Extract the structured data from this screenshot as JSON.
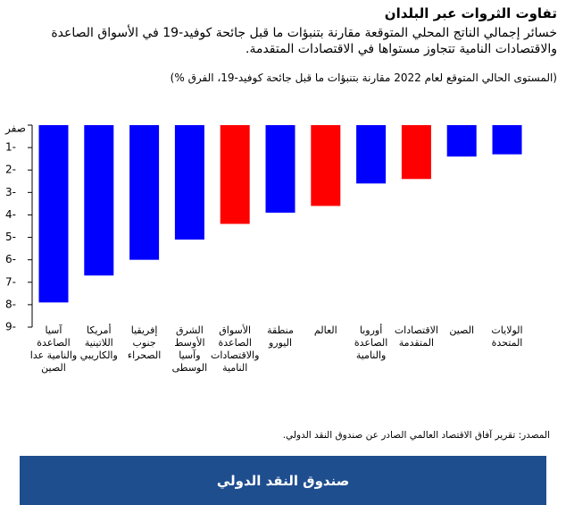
{
  "chart_data": {
    "type": "bar",
    "title": "تفاوت الثروات عبر البلدان",
    "subtitle": "خسائر إجمالي الناتج المحلي المتوقعة مقارنة بتنبؤات ما قبل جائحة كوفيد-19 في الأسواق الصاعدة والاقتصادات النامية تتجاوز مستواها في الاقتصادات المتقدمة.",
    "y_label": "(المستوى الحالي المتوقع لعام 2022 مقارنة بتنبؤات ما قبل جائحة كوفيد-19، الفرق %)",
    "categories": [
      "آسيا الصاعدة والنامية عدا الصين",
      "أمريكا اللاتينية والكاريبي",
      "إفريقيا جنوب الصحراء",
      "الشرق الأوسط وآسيا الوسطى",
      "الأسواق الصاعدة والاقتصادات النامية",
      "منطقة اليورو",
      "العالم",
      "أوروبا الصاعدة والنامية",
      "الاقتصادات المتقدمة",
      "الصين",
      "الولايات المتحدة"
    ],
    "values": [
      -7.9,
      -6.7,
      -6.0,
      -5.1,
      -4.4,
      -3.9,
      -3.6,
      -2.6,
      -2.4,
      -1.4,
      -1.3
    ],
    "colors": [
      "#0000ff",
      "#0000ff",
      "#0000ff",
      "#0000ff",
      "#ff0000",
      "#0000ff",
      "#ff0000",
      "#0000ff",
      "#ff0000",
      "#0000ff",
      "#0000ff"
    ],
    "ylim": [
      -9,
      0
    ],
    "yticks": [
      {
        "value": 0,
        "label": "صفر"
      },
      {
        "value": -1,
        "label": "1-"
      },
      {
        "value": -2,
        "label": "2-"
      },
      {
        "value": -3,
        "label": "3-"
      },
      {
        "value": -4,
        "label": "4-"
      },
      {
        "value": -5,
        "label": "5-"
      },
      {
        "value": -6,
        "label": "6-"
      },
      {
        "value": -7,
        "label": "7-"
      },
      {
        "value": -8,
        "label": "8-"
      },
      {
        "value": -9,
        "label": "9-"
      }
    ],
    "source": "المصدر: تقرير آفاق الاقتصاد العالمي الصادر عن صندوق النقد الدولي.",
    "footer": "صندوق النقد الدولي"
  }
}
